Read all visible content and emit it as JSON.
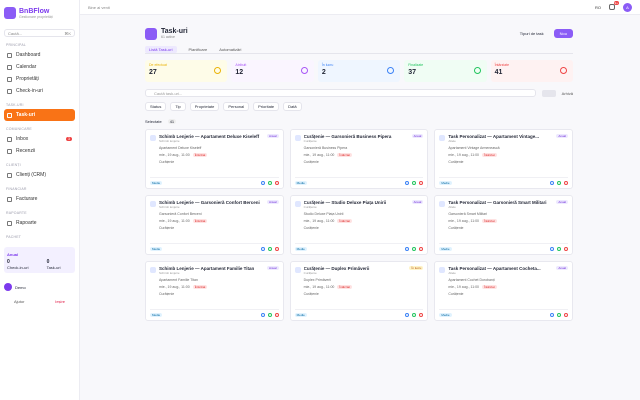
{
  "sidebar": {
    "brand": "BnBFlow",
    "tagline": "Gestionare proprietăți",
    "search": "Caută...",
    "shortcut": "⌘K",
    "sections": [
      {
        "title": "PRINCIPAL",
        "items": [
          {
            "label": "Dashboard"
          },
          {
            "label": "Calendar"
          },
          {
            "label": "Proprietăți"
          },
          {
            "label": "Check-in-uri"
          }
        ]
      },
      {
        "title": "TASK-URI",
        "items": [
          {
            "label": "Task-uri"
          }
        ]
      },
      {
        "title": "COMUNICARE",
        "items": [
          {
            "label": "Inbox",
            "badge": "3"
          },
          {
            "label": "Recenzii"
          }
        ]
      },
      {
        "title": "CLIENȚI",
        "items": [
          {
            "label": "Clienți (CRM)"
          }
        ]
      },
      {
        "title": "FINANCIAR",
        "items": [
          {
            "label": "Facturare"
          }
        ]
      },
      {
        "title": "RAPOARTE",
        "items": [
          {
            "label": "Rapoarte"
          }
        ]
      }
    ],
    "plan": {
      "title": "PACHET",
      "name": "Anual",
      "stats": [
        {
          "value": "0",
          "label": "Check-in-uri"
        },
        {
          "value": "0",
          "label": "Task-uri"
        }
      ]
    },
    "user": {
      "name": "Demo"
    },
    "footer": {
      "help": "Ajutor",
      "logout": "Ieșire"
    }
  },
  "topbar": {
    "breadcrumb": "Bine ai venit",
    "lang": "RO",
    "notifications": "9+",
    "avatar": "A"
  },
  "header": {
    "title": "Task-uri",
    "subtitle": "61 active",
    "types_button": "Tipuri de task",
    "new_button": "Nou"
  },
  "tabs": [
    "Listă Task-uri",
    "Planificare",
    "Automatizări"
  ],
  "stats": [
    {
      "label": "De efectuat",
      "value": 27
    },
    {
      "label": "Atribuit",
      "value": 12
    },
    {
      "label": "În lucru",
      "value": 2
    },
    {
      "label": "Finalizate",
      "value": 37
    },
    {
      "label": "Întârziate",
      "value": 41
    }
  ],
  "search": "Caută task-uri...",
  "archive": "Arhivă",
  "filters": [
    "Status",
    "Tip",
    "Proprietate",
    "Personal",
    "Prioritate",
    "Dată"
  ],
  "group": {
    "label": "Selectate",
    "count": "41"
  },
  "cards": [
    {
      "title": "Schimb Lenjerie — Apartament Deluxe Kiseleff",
      "subtitle": "Schimb lenjerie",
      "badge": "Anual",
      "property": "Apartament Deluxe Kiseleff",
      "date": "mie., 19 aug., 11:00",
      "tag": "Întârziat",
      "assignee": "Curățenie",
      "priority": "Medie"
    },
    {
      "title": "Curățenie — Garsonieră Business Pipera",
      "subtitle": "Curățenie",
      "badge": "Anual",
      "property": "Garsonieră Business Pipera",
      "date": "mie., 19 aug., 11:00",
      "tag": "Întârziat",
      "assignee": "Curățenie",
      "priority": "Medie"
    },
    {
      "title": "Task Personalizat — Apartament Vintage...",
      "subtitle": "Altele",
      "badge": "Anual",
      "property": "Apartament Vintage Armenească",
      "date": "mie., 19 aug., 11:00",
      "tag": "Întârziat",
      "assignee": "Curățenie",
      "priority": "Medie"
    },
    {
      "title": "Schimb Lenjerie — Garsonieră Confort Berceni",
      "subtitle": "Schimb lenjerie",
      "badge": "Anual",
      "property": "Garsonieră Confort Berceni",
      "date": "mie., 19 aug., 11:00",
      "tag": "Întârziat",
      "assignee": "Curățenie",
      "priority": "Medie"
    },
    {
      "title": "Curățenie — Studio Deluxe Piața Unirii",
      "subtitle": "Curățenie",
      "badge": "Anual",
      "property": "Studio Deluxe Piața Unirii",
      "date": "mie., 19 aug., 11:00",
      "tag": "Întârziat",
      "assignee": "Curățenie",
      "priority": "Medie"
    },
    {
      "title": "Task Personalizat — Garsonieră Smart Militari",
      "subtitle": "Altele",
      "badge": "Anual",
      "property": "Garsonieră Smart Militari",
      "date": "mie., 19 aug., 11:00",
      "tag": "Întârziat",
      "assignee": "Curățenie",
      "priority": "Medie"
    },
    {
      "title": "Schimb Lenjerie — Apartament Familie Titan",
      "subtitle": "Schimb lenjerie",
      "badge": "Anual",
      "property": "Apartament Familie Titan",
      "date": "mie., 19 aug., 11:00",
      "tag": "Întârziat",
      "assignee": "Curățenie",
      "priority": "Medie"
    },
    {
      "title": "Curățenie — Duplex Primăverii",
      "subtitle": "Curățenie",
      "badge": "În lucru",
      "property": "Duplex Primăverii",
      "date": "mie., 19 aug., 11:00",
      "tag": "Întârziat",
      "assignee": "Curățenie",
      "priority": "Medie"
    },
    {
      "title": "Task Personalizat — Apartament Cocheta...",
      "subtitle": "Altele",
      "badge": "Anual",
      "property": "Apartament Cochet Dorobanți",
      "date": "mie., 19 aug., 11:00",
      "tag": "Întârziat",
      "assignee": "Curățenie",
      "priority": "Medie"
    }
  ]
}
